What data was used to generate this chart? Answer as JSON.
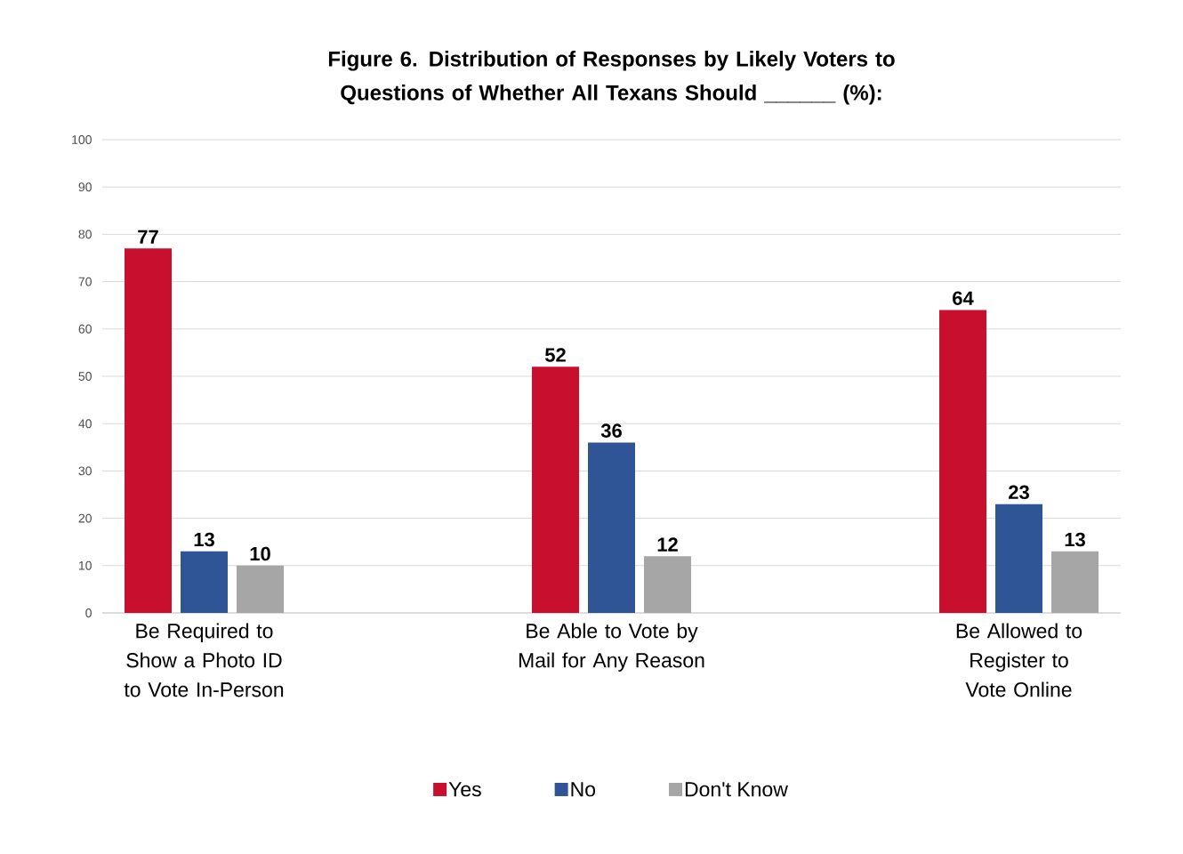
{
  "chart_data": {
    "type": "bar",
    "title": "Figure 6. Distribution of Responses by Likely Voters to Questions of Whether All Texans Should ______ (%):",
    "categories": [
      "Be Required to Show a Photo ID to Vote In-Person",
      "Be Able to Vote by Mail for Any Reason",
      "Be Allowed to Register to Vote Online"
    ],
    "series": [
      {
        "name": "Yes",
        "color": "#c8102e",
        "values": [
          77,
          52,
          64
        ]
      },
      {
        "name": "No",
        "color": "#2f5597",
        "values": [
          13,
          36,
          23
        ]
      },
      {
        "name": "Don't Know",
        "color": "#a6a6a6",
        "values": [
          10,
          12,
          13
        ]
      }
    ],
    "ylim": [
      0,
      100
    ],
    "yticks": [
      0,
      10,
      20,
      30,
      40,
      50,
      60,
      70,
      80,
      90,
      100
    ],
    "grid": "y",
    "legend": "bottom",
    "data_labels": true
  }
}
